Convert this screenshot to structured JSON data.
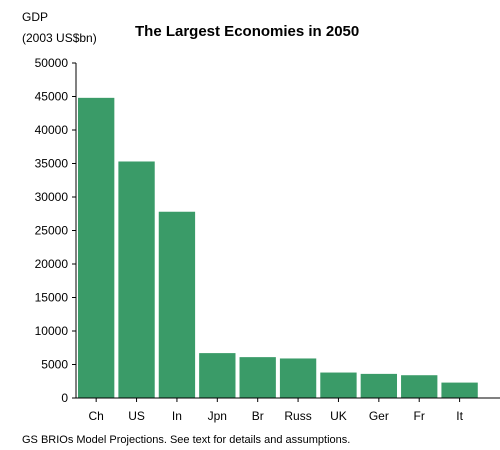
{
  "chart_data": {
    "type": "bar",
    "title": "The Largest Economies in 2050",
    "ylabel_line1": "GDP",
    "ylabel_line2": "(2003 US$bn)",
    "xlabel": "",
    "source_note": "GS BRIOs Model Projections. See text for details and assumptions.",
    "categories": [
      "Ch",
      "US",
      "In",
      "Jpn",
      "Br",
      "Russ",
      "UK",
      "Ger",
      "Fr",
      "It"
    ],
    "values": [
      44800,
      35300,
      27800,
      6700,
      6100,
      5900,
      3800,
      3600,
      3400,
      2300
    ],
    "ylim": [
      0,
      50000
    ],
    "yticks": [
      0,
      5000,
      10000,
      15000,
      20000,
      25000,
      30000,
      35000,
      40000,
      45000,
      50000
    ],
    "bar_color": "#3a9b68",
    "grid": false,
    "legend": "none"
  }
}
